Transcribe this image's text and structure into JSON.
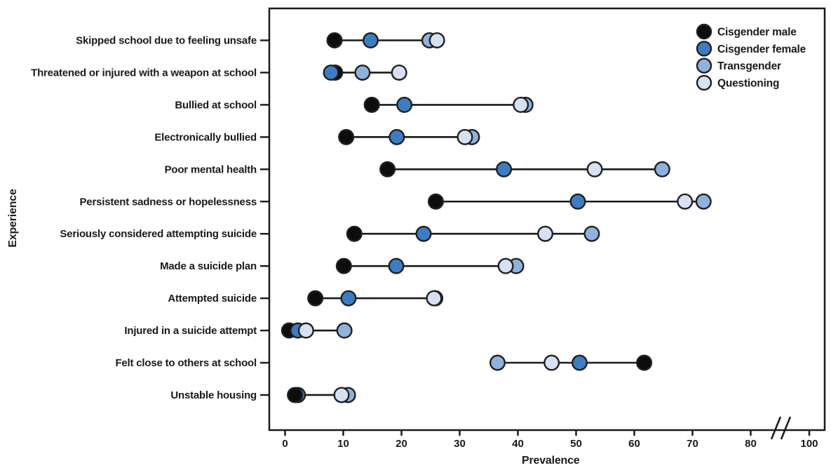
{
  "chart_data": {
    "type": "scatter",
    "variant": "dumbbell-dot-plot",
    "title": "",
    "xlabel": "Prevalence",
    "ylabel": "Experience",
    "x_ticks": [
      0,
      10,
      20,
      30,
      40,
      50,
      60,
      70,
      80
    ],
    "x_tick_after_break": 100,
    "axis_break": {
      "between": [
        80,
        100
      ]
    },
    "xlim_linear": [
      0,
      85
    ],
    "grid": false,
    "legend_position": "top-right-inside",
    "categories": [
      "Skipped school due to feeling unsafe",
      "Threatened or injured with a weapon at school",
      "Bullied at school",
      "Electronically bullied",
      "Poor mental health",
      "Persistent sadness or hopelessness",
      "Seriously considered attempting suicide",
      "Made a suicide plan",
      "Attempted suicide",
      "Injured in a suicide attempt",
      "Felt close to others at school",
      "Unstable housing"
    ],
    "series": [
      {
        "key": "cis_male",
        "name": "Cisgender male",
        "color": "#0d0d0d",
        "values": [
          8.5,
          8.6,
          14.9,
          10.5,
          17.6,
          25.9,
          11.9,
          10.1,
          5.2,
          0.7,
          61.7,
          1.7
        ]
      },
      {
        "key": "cis_female",
        "name": "Cisgender female",
        "color": "#3d7cc0",
        "values": [
          14.7,
          7.9,
          20.5,
          19.2,
          37.6,
          50.3,
          23.8,
          19.1,
          10.9,
          2.2,
          50.6,
          2.2
        ]
      },
      {
        "key": "transgender",
        "name": "Transgender",
        "color": "#8fb2dd",
        "values": [
          24.8,
          13.3,
          41.3,
          32.1,
          64.8,
          71.9,
          52.7,
          39.7,
          25.8,
          10.2,
          36.5,
          10.8
        ]
      },
      {
        "key": "questioning",
        "name": "Questioning",
        "color": "#d6e2f3",
        "values": [
          26.1,
          19.6,
          40.5,
          30.9,
          53.2,
          68.7,
          44.7,
          37.9,
          25.6,
          3.6,
          45.8,
          9.7
        ]
      }
    ],
    "draw_order_default": [
      "cis_male",
      "cis_female",
      "transgender",
      "questioning"
    ],
    "draw_order_overrides": {
      "Unstable housing": [
        "cis_female",
        "cis_male",
        "transgender",
        "questioning"
      ]
    },
    "style": {
      "dot_stroke": "#1f1f1f",
      "line_color": "#1a1a1a",
      "axis_color": "#1a1a1a",
      "text_color": "#1a1a1a"
    }
  }
}
